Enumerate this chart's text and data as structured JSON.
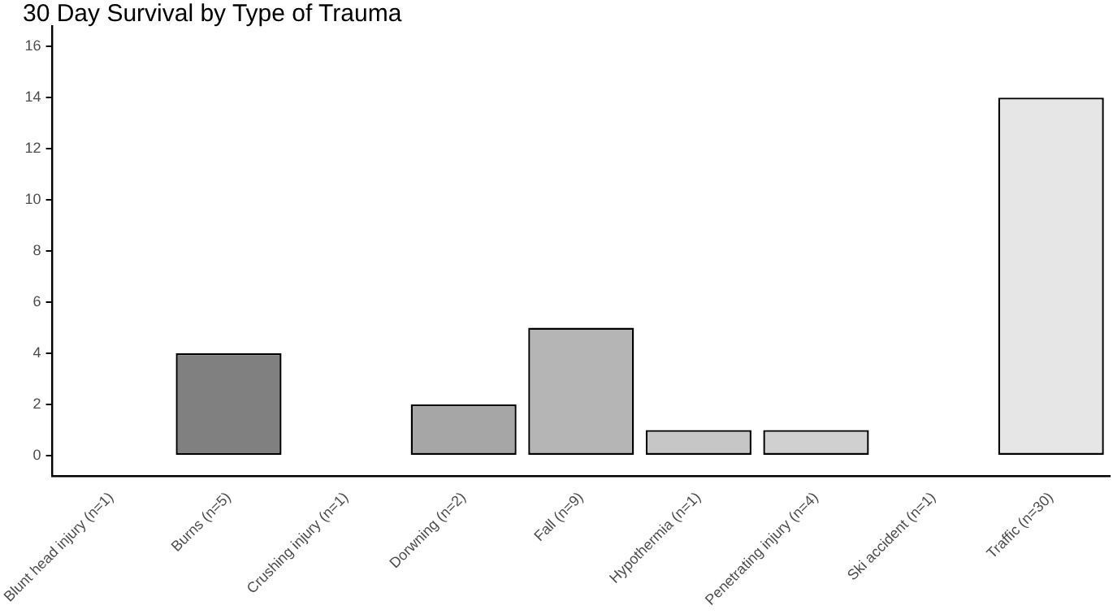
{
  "chart_data": {
    "type": "bar",
    "title": "30 Day Survival by Type of Trauma",
    "categories": [
      "Blunt head injury (n=1)",
      "Burns (n=5)",
      "Crushing injury (n=1)",
      "Dorwning (n=2)",
      "Fall (n=9)",
      "Hypothermia (n=1)",
      "Penetrating injury (n=4)",
      "Ski accident (n=1)",
      "Traffic (n=30)"
    ],
    "values": [
      0,
      4,
      0,
      2,
      5,
      1,
      1,
      0,
      14
    ],
    "colors": [
      "#595959",
      "#808080",
      "#666666",
      "#a6a6a6",
      "#b5b5b5",
      "#c6c6c6",
      "#d0d0d0",
      "#595959",
      "#e6e6e6"
    ],
    "ylim": [
      -0.8,
      16.8
    ],
    "yticks": [
      0,
      2,
      4,
      6,
      8,
      10,
      12,
      14,
      16
    ],
    "grid": false,
    "legend": false
  }
}
